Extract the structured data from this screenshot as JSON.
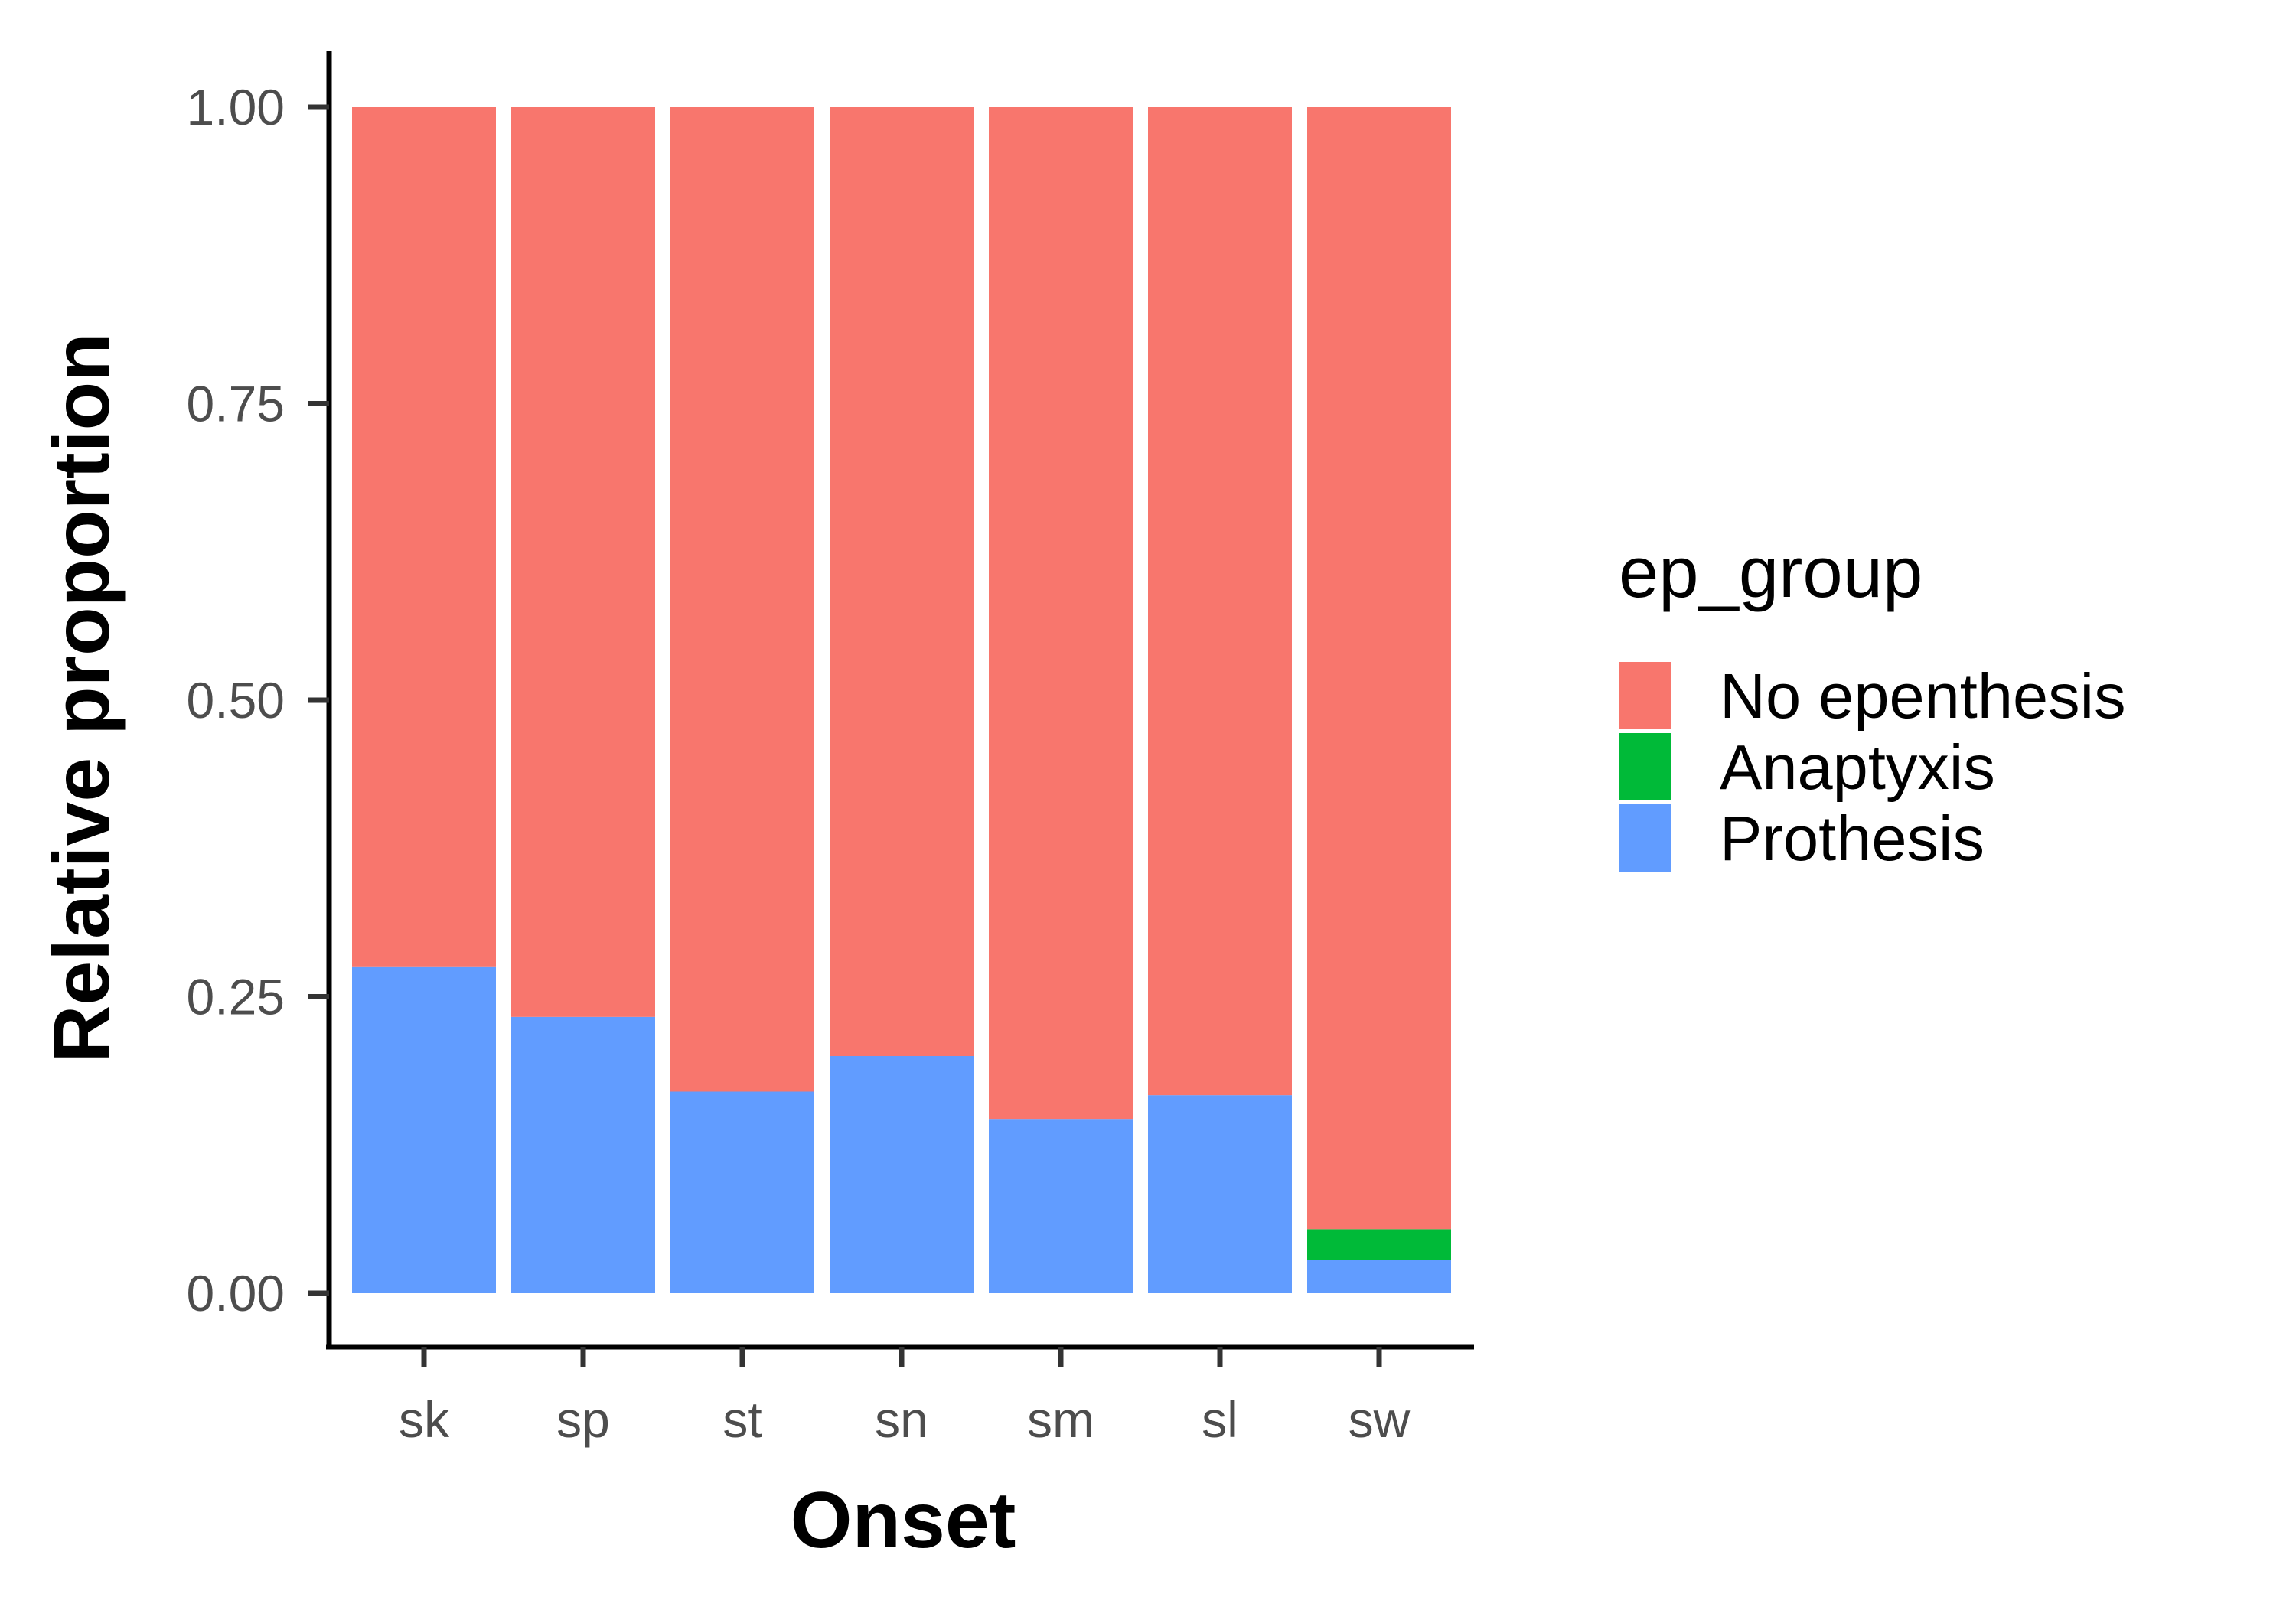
{
  "chart_data": {
    "type": "bar",
    "stacked": true,
    "title": "",
    "xlabel": "Onset",
    "ylabel": "Relative proportion",
    "ylim": [
      0,
      1
    ],
    "yticks": [
      "0.00",
      "0.25",
      "0.50",
      "0.75",
      "1.00"
    ],
    "grid": false,
    "legend_placement": "right",
    "categories": [
      "sk",
      "sp",
      "st",
      "sn",
      "sm",
      "sl",
      "sw"
    ],
    "legend": {
      "title": "ep_group",
      "entries": [
        "No epenthesis",
        "Anaptyxis",
        "Prothesis"
      ]
    },
    "series": [
      {
        "name": "Prothesis",
        "color": "#619CFF",
        "values": [
          0.275,
          0.233,
          0.17,
          0.2,
          0.147,
          0.167,
          0.028
        ]
      },
      {
        "name": "Anaptyxis",
        "color": "#00BA38",
        "values": [
          0,
          0,
          0,
          0,
          0,
          0,
          0.026
        ]
      },
      {
        "name": "No epenthesis",
        "color": "#F8766D",
        "values": [
          0.725,
          0.767,
          0.83,
          0.8,
          0.853,
          0.833,
          0.946
        ]
      }
    ]
  }
}
